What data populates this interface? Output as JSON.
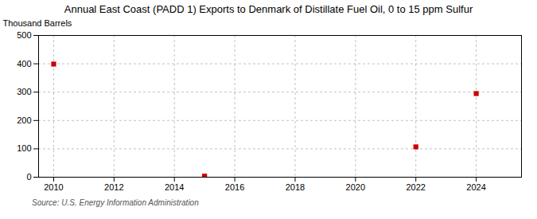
{
  "chart_data": {
    "type": "scatter",
    "title": "Annual East Coast (PADD 1) Exports to Denmark of Distillate Fuel Oil, 0 to 15 ppm Sulfur",
    "ylabel": "Thousand Barrels",
    "source": "Source: U.S. Energy Information Administration",
    "x": [
      2010,
      2015,
      2022,
      2024
    ],
    "values": [
      399,
      4,
      107,
      295
    ],
    "color": "#cc0000",
    "marker": "square",
    "xlim": [
      2009.5,
      2025.5
    ],
    "xticks": [
      2010,
      2012,
      2014,
      2016,
      2018,
      2020,
      2022,
      2024
    ],
    "ylim": [
      0,
      500
    ],
    "yticks": [
      0,
      100,
      200,
      300,
      400,
      500
    ],
    "grid": true
  }
}
